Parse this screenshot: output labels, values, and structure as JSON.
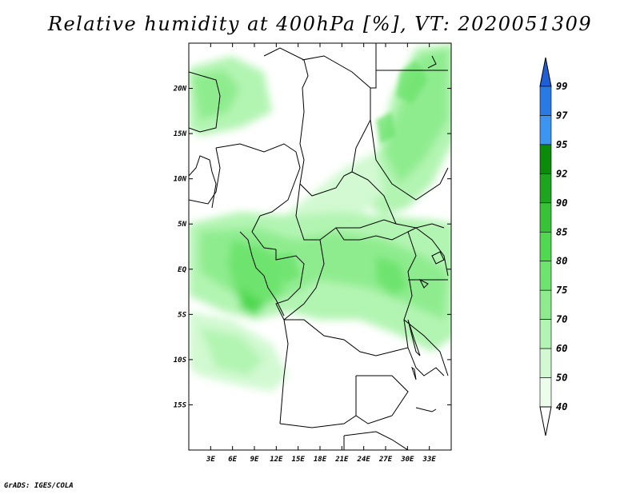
{
  "title": "Relative humidity at 400hPa [%], VT: 2020051309",
  "credit": "GrADS: IGES/COLA",
  "map": {
    "lon_range": [
      0,
      36
    ],
    "lat_range": [
      -20,
      25
    ],
    "lat_ticks": [
      "20N",
      "15N",
      "10N",
      "5N",
      "EQ",
      "5S",
      "10S",
      "15S"
    ],
    "lat_values": [
      20,
      15,
      10,
      5,
      0,
      -5,
      -10,
      -15
    ],
    "lon_ticks": [
      "3E",
      "6E",
      "9E",
      "12E",
      "15E",
      "18E",
      "21E",
      "24E",
      "27E",
      "30E",
      "33E"
    ],
    "lon_values": [
      3,
      6,
      9,
      12,
      15,
      18,
      21,
      24,
      27,
      30,
      33
    ]
  },
  "colorbar": {
    "labels": [
      "99",
      "97",
      "95",
      "92",
      "90",
      "85",
      "80",
      "75",
      "70",
      "60",
      "50",
      "40"
    ],
    "colors": [
      "#1e5fd8",
      "#2a7ae6",
      "#3d95f2",
      "#0a8c0a",
      "#1ea51e",
      "#37c237",
      "#50d850",
      "#6ee36e",
      "#8eec8e",
      "#b2f4b2",
      "#d2f9d2",
      "#ecfdec"
    ]
  }
}
